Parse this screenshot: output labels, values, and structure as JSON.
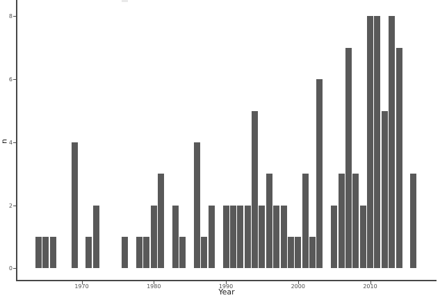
{
  "chart_data": {
    "type": "bar",
    "title": "",
    "xlabel": "Year",
    "ylabel": "n",
    "x": [
      1964,
      1965,
      1966,
      1969,
      1971,
      1972,
      1976,
      1978,
      1979,
      1980,
      1981,
      1983,
      1984,
      1986,
      1987,
      1988,
      1990,
      1991,
      1992,
      1993,
      1994,
      1995,
      1996,
      1997,
      1998,
      1999,
      2000,
      2001,
      2002,
      2003,
      2005,
      2006,
      2007,
      2008,
      2009,
      2010,
      2011,
      2012,
      2013,
      2014,
      2016
    ],
    "values": [
      1,
      1,
      1,
      4,
      1,
      2,
      1,
      1,
      1,
      2,
      3,
      2,
      1,
      4,
      1,
      2,
      2,
      2,
      2,
      2,
      5,
      2,
      3,
      2,
      2,
      1,
      1,
      3,
      1,
      6,
      2,
      3,
      7,
      3,
      2,
      8,
      8,
      5,
      8,
      7,
      3
    ],
    "xticks": [
      1970,
      1980,
      1990,
      2000,
      2010
    ],
    "yticks": [
      0,
      2,
      4,
      6,
      8
    ],
    "xlim": [
      1961.0,
      2019.2
    ],
    "ylim": [
      -0.4,
      8.9
    ],
    "grid": false,
    "legend": "none",
    "bar_color": "#595959",
    "axis_line_color": "#474747",
    "tick_label_color": "#4d4d4d",
    "axis_title_color": "#1a1a1a",
    "background": "#ffffff"
  }
}
